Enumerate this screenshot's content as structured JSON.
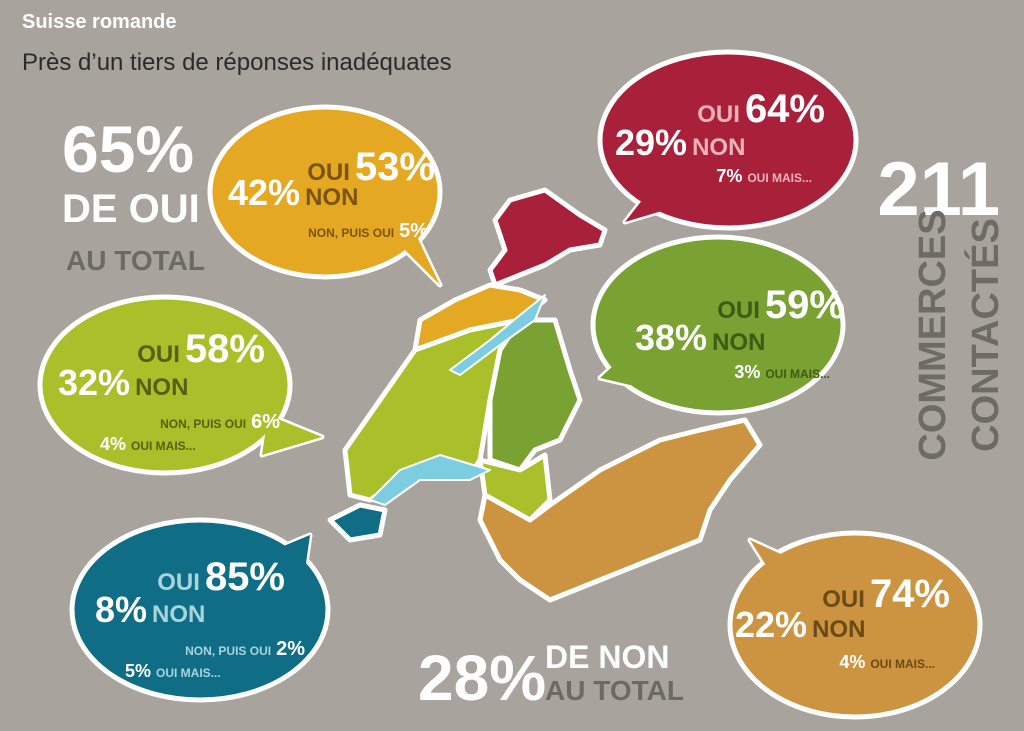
{
  "header": {
    "title": "Suisse romande",
    "subtitle": "Près d’un tiers de réponses inadéquates"
  },
  "total_yes": {
    "value": "65%",
    "line1": "DE OUI",
    "line2": "AU TOTAL"
  },
  "total_no": {
    "value": "28%",
    "line1": "DE NON",
    "line2": "AU TOTAL"
  },
  "contacts": {
    "value": "211",
    "line1": "COMMERCES",
    "line2": "CONTACTÉS"
  },
  "bubbles": [
    {
      "color": "#e5a823",
      "items": [
        {
          "label": "OUI",
          "value": "53%"
        },
        {
          "value": "42%",
          "label": "NON"
        },
        {
          "label": "NON, PUIS OUI",
          "value": "5%"
        }
      ]
    },
    {
      "color": "#a8203a",
      "items": [
        {
          "label": "OUI",
          "value": "64%"
        },
        {
          "value": "29%",
          "label": "NON"
        },
        {
          "value": "7%",
          "label": "OUI MAIS..."
        }
      ]
    },
    {
      "color": "#7aa232",
      "items": [
        {
          "label": "OUI",
          "value": "59%"
        },
        {
          "value": "38%",
          "label": "NON"
        },
        {
          "value": "3%",
          "label": "OUI MAIS..."
        }
      ]
    },
    {
      "color": "#a9c02b",
      "items": [
        {
          "label": "OUI",
          "value": "58%"
        },
        {
          "value": "32%",
          "label": "NON"
        },
        {
          "label": "NON, PUIS OUI",
          "value": "6%"
        },
        {
          "value": "4%",
          "label": "OUI MAIS..."
        }
      ]
    },
    {
      "color": "#0f6e86",
      "items": [
        {
          "label": "OUI",
          "value": "85%"
        },
        {
          "value": "8%",
          "label": "NON"
        },
        {
          "label": "NON, PUIS OUI",
          "value": "2%"
        },
        {
          "value": "5%",
          "label": "OUI MAIS..."
        }
      ]
    },
    {
      "color": "#cc9440",
      "items": [
        {
          "label": "OUI",
          "value": "74%"
        },
        {
          "value": "22%",
          "label": "NON"
        },
        {
          "value": "4%",
          "label": "OUI MAIS..."
        }
      ]
    }
  ]
}
